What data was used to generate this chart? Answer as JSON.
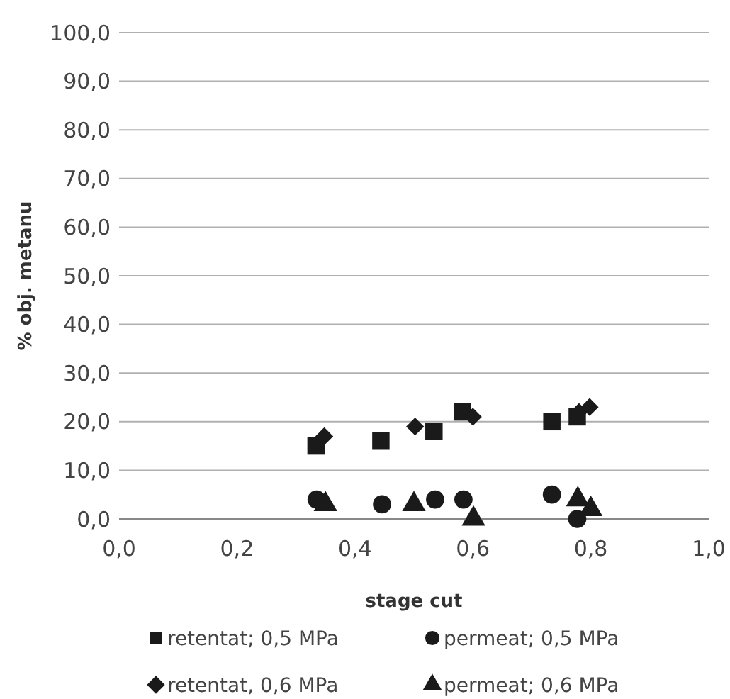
{
  "chart_data": {
    "type": "scatter",
    "xlabel": "stage cut",
    "ylabel": "% obj. metanu",
    "xlim": [
      0,
      1
    ],
    "ylim": [
      0,
      100
    ],
    "xticks": [
      {
        "value": 0,
        "label": "0,0"
      },
      {
        "value": 0.2,
        "label": "0,2"
      },
      {
        "value": 0.4,
        "label": "0,4"
      },
      {
        "value": 0.6,
        "label": "0,6"
      },
      {
        "value": 0.8,
        "label": "0,8"
      },
      {
        "value": 1,
        "label": "1,0"
      }
    ],
    "yticks": [
      {
        "value": 0,
        "label": "0,0"
      },
      {
        "value": 10,
        "label": "10,0"
      },
      {
        "value": 20,
        "label": "20,0"
      },
      {
        "value": 30,
        "label": "30,0"
      },
      {
        "value": 40,
        "label": "40,0"
      },
      {
        "value": 50,
        "label": "50,0"
      },
      {
        "value": 60,
        "label": "60,0"
      },
      {
        "value": 70,
        "label": "70,0"
      },
      {
        "value": 80,
        "label": "80,0"
      },
      {
        "value": 90,
        "label": "90,0"
      },
      {
        "value": 100,
        "label": "100,0"
      }
    ],
    "grid": "y",
    "legend": "bottom",
    "series": [
      {
        "name": "retentat; 0,5 MPa",
        "color": "#1a1a1a",
        "marker": "square",
        "x": [
          0.334,
          0.444,
          0.534,
          0.582,
          0.734,
          0.777
        ],
        "values": [
          15,
          16,
          18,
          22,
          20,
          21
        ]
      },
      {
        "name": "permeat; 0,5 MPa",
        "color": "#1a1a1a",
        "marker": "circle",
        "x": [
          0.335,
          0.446,
          0.536,
          0.584,
          0.734,
          0.777
        ],
        "values": [
          4,
          3,
          4,
          4,
          5,
          0
        ]
      },
      {
        "name": "retentat, 0,6 MPa",
        "color": "#1a1a1a",
        "marker": "diamond",
        "x": [
          0.348,
          0.502,
          0.6,
          0.78,
          0.798
        ],
        "values": [
          17,
          19,
          21,
          22,
          23
        ]
      },
      {
        "name": "permeat; 0,6 MPa",
        "color": "#1a1a1a",
        "marker": "triangle",
        "x": [
          0.35,
          0.5,
          0.601,
          0.778,
          0.8
        ],
        "values": [
          3,
          3,
          0,
          4,
          2
        ]
      }
    ]
  }
}
